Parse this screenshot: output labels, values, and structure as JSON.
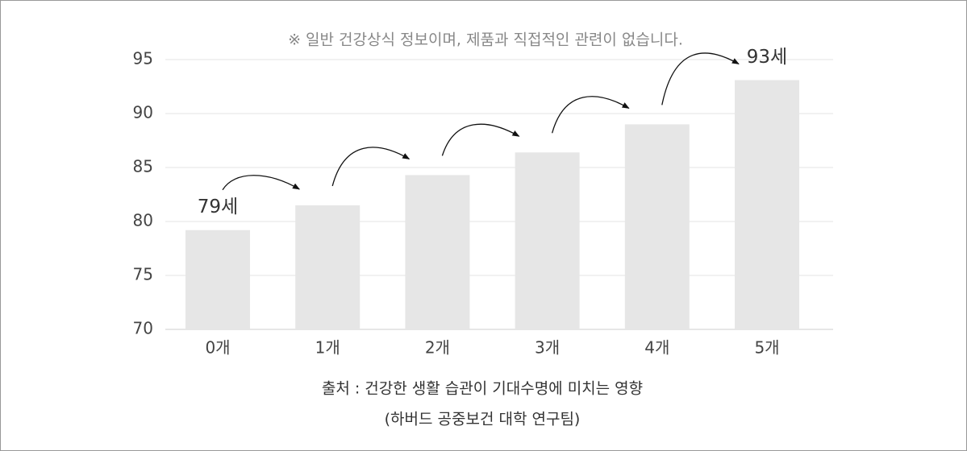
{
  "chart_data": {
    "type": "bar",
    "note": "※ 일반 건강상식 정보이며, 제품과 직접적인 관련이 없습니다.",
    "categories": [
      "0개",
      "1개",
      "2개",
      "3개",
      "4개",
      "5개"
    ],
    "values": [
      79.2,
      81.5,
      84.3,
      86.4,
      89.0,
      93.1
    ],
    "value_labels": [
      "79세",
      null,
      null,
      null,
      null,
      "93세"
    ],
    "color": "#e6e6e6",
    "ylim": [
      70,
      95
    ],
    "yticks": [
      70,
      75,
      80,
      85,
      90,
      95
    ],
    "grid": true,
    "source": [
      "출처 : 건강한 생활 습관이 기대수명에 미치는 영향",
      "(하버드 공중보건 대학 연구팀)"
    ]
  }
}
